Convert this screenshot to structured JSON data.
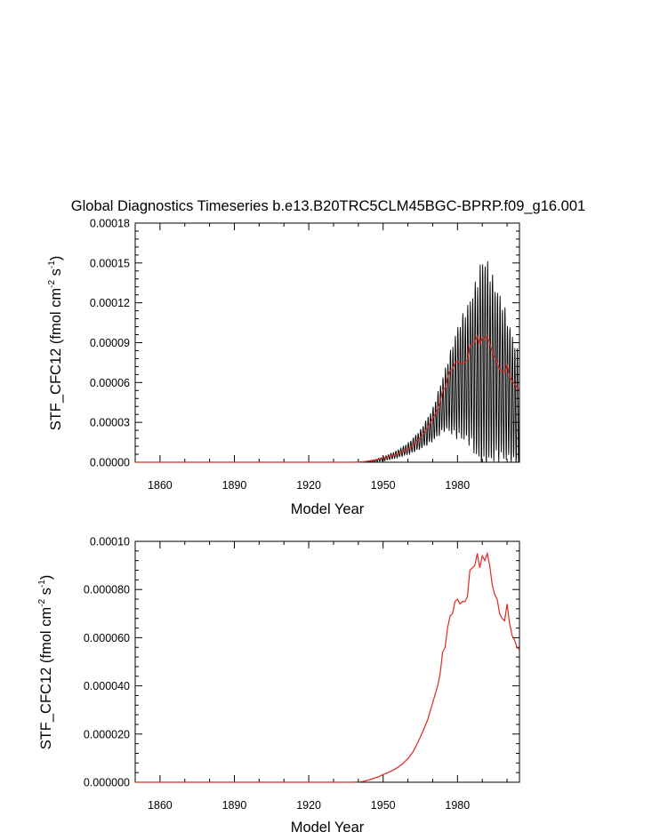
{
  "figure_title": "Global Diagnostics Timeseries b.e13.B20TRC5CLM45BGC-BPRP.f09_g16.001",
  "colors": {
    "monthly": "#000000",
    "annual": "#e0281e",
    "axis": "#000000"
  },
  "chart_data": [
    {
      "type": "line",
      "title": "Global Diagnostics Timeseries b.e13.B20TRC5CLM45BGC-BPRP.f09_g16.001",
      "xlabel": "Model Year",
      "ylabel_main": "STF_CFC12 (fmol cm",
      "ylabel_sup1": "-2",
      "ylabel_mid": " s",
      "ylabel_sup2": "-1",
      "ylabel_end": ")",
      "xlim": [
        1850,
        2005
      ],
      "ylim": [
        0,
        0.00018
      ],
      "xticks": [
        1860,
        1890,
        1920,
        1950,
        1980
      ],
      "xtick_labels": [
        "1860",
        "1890",
        "1920",
        "1950",
        "1980"
      ],
      "yticks": [
        0,
        3e-05,
        6e-05,
        9e-05,
        0.00012,
        0.00015,
        0.00018
      ],
      "ytick_labels": [
        "0.00000",
        "0.00003",
        "0.00006",
        "0.00009",
        "0.00012",
        "0.00015",
        "0.00018"
      ],
      "series": [
        {
          "name": "monthly",
          "color": "#000000",
          "kind": "seasonal",
          "anchor_x": [
            1850,
            1938,
            1945,
            1950,
            1955,
            1960,
            1965,
            1970,
            1975,
            1980,
            1985,
            1988,
            1990,
            1992,
            1995,
            1998,
            2000,
            2002,
            2005
          ],
          "anchor_mean": [
            0,
            0,
            5e-07,
            2.5e-06,
            5.5e-06,
            1e-05,
            1.7e-05,
            2.8e-05,
            4.7e-05,
            6e-05,
            6.8e-05,
            7e-05,
            7.4e-05,
            7.4e-05,
            6.8e-05,
            6.2e-05,
            5.5e-05,
            4.8e-05,
            3.8e-05
          ],
          "anchor_amp": [
            0,
            0,
            5e-07,
            1.5e-06,
            2.5e-06,
            4e-06,
            7e-06,
            1.2e-05,
            2.2e-05,
            4e-05,
            5.2e-05,
            6.6e-05,
            7.7e-05,
            7.4e-05,
            6.4e-05,
            5.8e-05,
            5.2e-05,
            4.7e-05,
            4e-05
          ]
        },
        {
          "name": "annual",
          "color": "#e0281e",
          "x": [
            1850,
            1938,
            1942,
            1945,
            1948,
            1950,
            1952,
            1954,
            1956,
            1958,
            1960,
            1962,
            1964,
            1966,
            1968,
            1970,
            1972,
            1973,
            1974,
            1975,
            1976,
            1977,
            1978,
            1979,
            1980,
            1981,
            1982,
            1983,
            1984,
            1985,
            1986,
            1987,
            1988,
            1989,
            1990,
            1991,
            1992,
            1993,
            1994,
            1995,
            1996,
            1997,
            1998,
            1999,
            2000,
            2001,
            2002,
            2003,
            2004,
            2005
          ],
          "y": [
            0,
            0,
            3e-07,
            1.2e-06,
            2.2e-06,
            3.2e-06,
            4e-06,
            5e-06,
            6.2e-06,
            7.8e-06,
            9.8e-06,
            1.25e-05,
            1.65e-05,
            2.1e-05,
            2.6e-05,
            3.3e-05,
            4e-05,
            4.5e-05,
            5.4e-05,
            5.6e-05,
            6.4e-05,
            6.9e-05,
            7e-05,
            7.5e-05,
            7.6e-05,
            7.4e-05,
            7.5e-05,
            7.5e-05,
            7.7e-05,
            8.8e-05,
            8.9e-05,
            9e-05,
            9.5e-05,
            8.9e-05,
            9.4e-05,
            9.2e-05,
            9.5e-05,
            9e-05,
            8.2e-05,
            7.8e-05,
            7.6e-05,
            7e-05,
            6.8e-05,
            6.7e-05,
            7.4e-05,
            6.6e-05,
            6.1e-05,
            5.9e-05,
            5.6e-05,
            5.5e-05
          ]
        }
      ]
    },
    {
      "type": "line",
      "title": "",
      "xlabel": "Model Year",
      "ylabel_main": "STF_CFC12 (fmol cm",
      "ylabel_sup1": "-2",
      "ylabel_mid": " s",
      "ylabel_sup2": "-1",
      "ylabel_end": ")",
      "xlim": [
        1850,
        2005
      ],
      "ylim": [
        0,
        0.0001
      ],
      "xticks": [
        1860,
        1890,
        1920,
        1950,
        1980
      ],
      "xtick_labels": [
        "1860",
        "1890",
        "1920",
        "1950",
        "1980"
      ],
      "yticks": [
        0,
        2e-05,
        4e-05,
        6e-05,
        8e-05,
        0.0001
      ],
      "ytick_labels": [
        "0.000000",
        "0.000020",
        "0.000040",
        "0.000060",
        "0.000080",
        "0.00010"
      ],
      "series": [
        {
          "name": "annual",
          "color": "#e0281e",
          "x": [
            1850,
            1938,
            1942,
            1945,
            1948,
            1950,
            1952,
            1954,
            1956,
            1958,
            1960,
            1962,
            1964,
            1966,
            1968,
            1970,
            1972,
            1973,
            1974,
            1975,
            1976,
            1977,
            1978,
            1979,
            1980,
            1981,
            1982,
            1983,
            1984,
            1985,
            1986,
            1987,
            1988,
            1989,
            1990,
            1991,
            1992,
            1993,
            1994,
            1995,
            1996,
            1997,
            1998,
            1999,
            2000,
            2001,
            2002,
            2003,
            2004,
            2005
          ],
          "y": [
            0,
            0,
            3e-07,
            1.2e-06,
            2.2e-06,
            3.2e-06,
            4e-06,
            5e-06,
            6.2e-06,
            7.8e-06,
            9.8e-06,
            1.25e-05,
            1.65e-05,
            2.1e-05,
            2.6e-05,
            3.3e-05,
            4e-05,
            4.5e-05,
            5.4e-05,
            5.6e-05,
            6.4e-05,
            6.9e-05,
            7e-05,
            7.5e-05,
            7.6e-05,
            7.4e-05,
            7.5e-05,
            7.5e-05,
            7.7e-05,
            8.8e-05,
            8.9e-05,
            9e-05,
            9.5e-05,
            8.9e-05,
            9.4e-05,
            9.2e-05,
            9.5e-05,
            9e-05,
            8.2e-05,
            7.8e-05,
            7.6e-05,
            7e-05,
            6.8e-05,
            6.7e-05,
            7.4e-05,
            6.6e-05,
            6.1e-05,
            5.9e-05,
            5.6e-05,
            5.5e-05
          ]
        }
      ]
    }
  ]
}
